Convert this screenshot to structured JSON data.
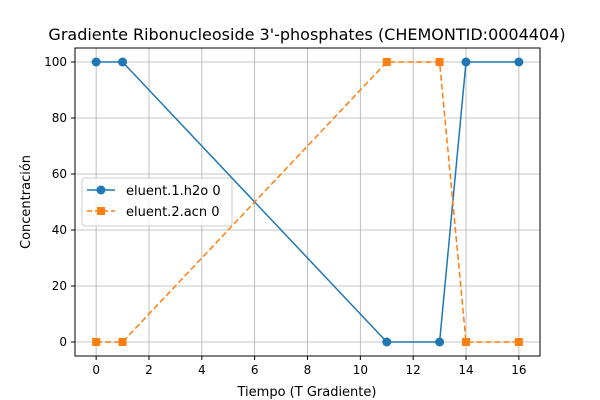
{
  "chart_data": {
    "type": "line",
    "title": "Gradiente Ribonucleoside 3'-phosphates (CHEMONTID:0004404)",
    "xlabel": "Tiempo (T Gradiente)",
    "ylabel": "Concentración",
    "xlim": [
      -0.8,
      16.8
    ],
    "ylim": [
      -5,
      105
    ],
    "xticks": [
      0,
      2,
      4,
      6,
      8,
      10,
      12,
      14,
      16
    ],
    "yticks": [
      0,
      20,
      40,
      60,
      80,
      100
    ],
    "grid": true,
    "legend_position": "center-left",
    "series": [
      {
        "name": "eluent.1.h2o 0",
        "x": [
          0,
          1,
          11,
          13,
          14,
          16
        ],
        "y": [
          100,
          100,
          0,
          0,
          100,
          100
        ],
        "color": "#1f77b4",
        "line_style": "solid",
        "marker": "circle"
      },
      {
        "name": "eluent.2.acn 0",
        "x": [
          0,
          1,
          11,
          13,
          14,
          16
        ],
        "y": [
          0,
          0,
          100,
          100,
          0,
          0
        ],
        "color": "#ff7f0e",
        "line_style": "dashed",
        "marker": "square"
      }
    ]
  }
}
